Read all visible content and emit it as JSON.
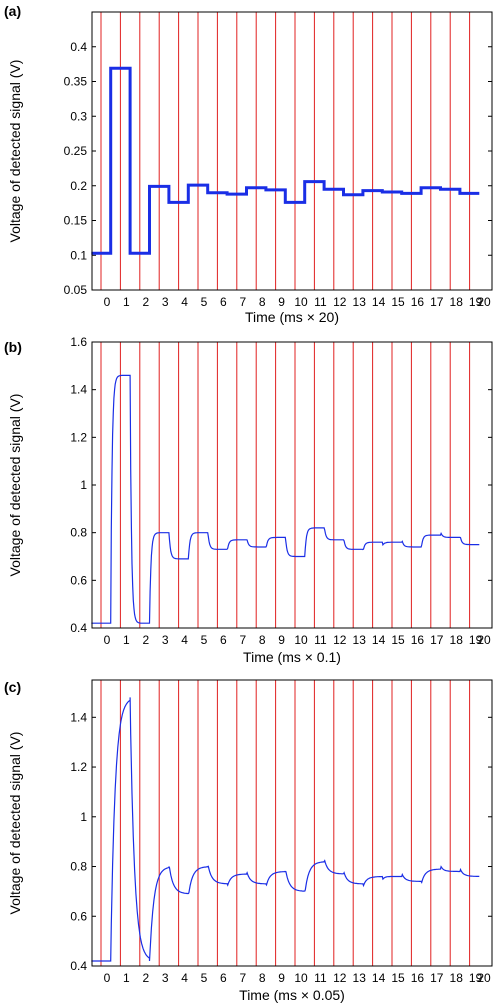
{
  "figure": {
    "line_color": "#1a2ee6",
    "divider_color": "#e02020",
    "frame_color": "#000000"
  },
  "chart_data": [
    {
      "panel": "(a)",
      "type": "line",
      "xlabel": "Time (ms × 20)",
      "ylabel": "Voltage of detected signal (V)",
      "ylim": [
        0.05,
        0.45
      ],
      "yticks": [
        "0.05",
        "0.1",
        "0.15",
        "0.2",
        "0.25",
        "0.3",
        "0.35",
        "0.4"
      ],
      "ytick_values": [
        0.05,
        0.1,
        0.15,
        0.2,
        0.25,
        0.3,
        0.35,
        0.4
      ],
      "xticks": [
        "0",
        "1",
        "2",
        "3",
        "4",
        "5",
        "6",
        "7",
        "8",
        "9",
        "10",
        "11",
        "12",
        "13",
        "14",
        "15",
        "16",
        "17",
        "18",
        "19",
        "20"
      ],
      "segment_levels": [
        0.103,
        0.369,
        0.103,
        0.199,
        0.176,
        0.201,
        0.19,
        0.188,
        0.197,
        0.194,
        0.176,
        0.206,
        0.195,
        0.187,
        0.193,
        0.191,
        0.189,
        0.197,
        0.195,
        0.189
      ],
      "grid": false,
      "style": "step"
    },
    {
      "panel": "(b)",
      "type": "line",
      "xlabel": "Time (ms × 0.1)",
      "ylabel": "Voltage of detected signal (V)",
      "ylim": [
        0.4,
        1.6
      ],
      "yticks": [
        "0.4",
        "0.6",
        "0.8",
        "1",
        "1.2",
        "1.4",
        "1.6"
      ],
      "ytick_values": [
        0.4,
        0.6,
        0.8,
        1.0,
        1.2,
        1.4,
        1.6
      ],
      "xticks": [
        "0",
        "1",
        "2",
        "3",
        "4",
        "5",
        "6",
        "7",
        "8",
        "9",
        "10",
        "11",
        "12",
        "13",
        "14",
        "15",
        "16",
        "17",
        "18",
        "19",
        "20"
      ],
      "segment_levels": [
        0.42,
        1.46,
        0.42,
        0.8,
        0.69,
        0.8,
        0.73,
        0.77,
        0.74,
        0.78,
        0.7,
        0.82,
        0.77,
        0.73,
        0.76,
        0.76,
        0.74,
        0.79,
        0.78,
        0.75
      ],
      "grid": false,
      "style": "transient"
    },
    {
      "panel": "(c)",
      "type": "line",
      "xlabel": "Time (ms × 0.05)",
      "ylabel": "Voltage of detected signal (V)",
      "ylim": [
        0.4,
        1.55
      ],
      "yticks": [
        "0.4",
        "0.6",
        "0.8",
        "1",
        "1.2",
        "1.4"
      ],
      "ytick_values": [
        0.4,
        0.6,
        0.8,
        1.0,
        1.2,
        1.4
      ],
      "xticks": [
        "0",
        "1",
        "2",
        "3",
        "4",
        "5",
        "6",
        "7",
        "8",
        "9",
        "10",
        "11",
        "12",
        "13",
        "14",
        "15",
        "16",
        "17",
        "18",
        "19",
        "20"
      ],
      "segment_levels": [
        0.42,
        1.48,
        0.42,
        0.8,
        0.69,
        0.8,
        0.73,
        0.77,
        0.73,
        0.78,
        0.7,
        0.82,
        0.77,
        0.73,
        0.76,
        0.76,
        0.74,
        0.79,
        0.78,
        0.76
      ],
      "grid": false,
      "style": "slow-transient"
    }
  ]
}
